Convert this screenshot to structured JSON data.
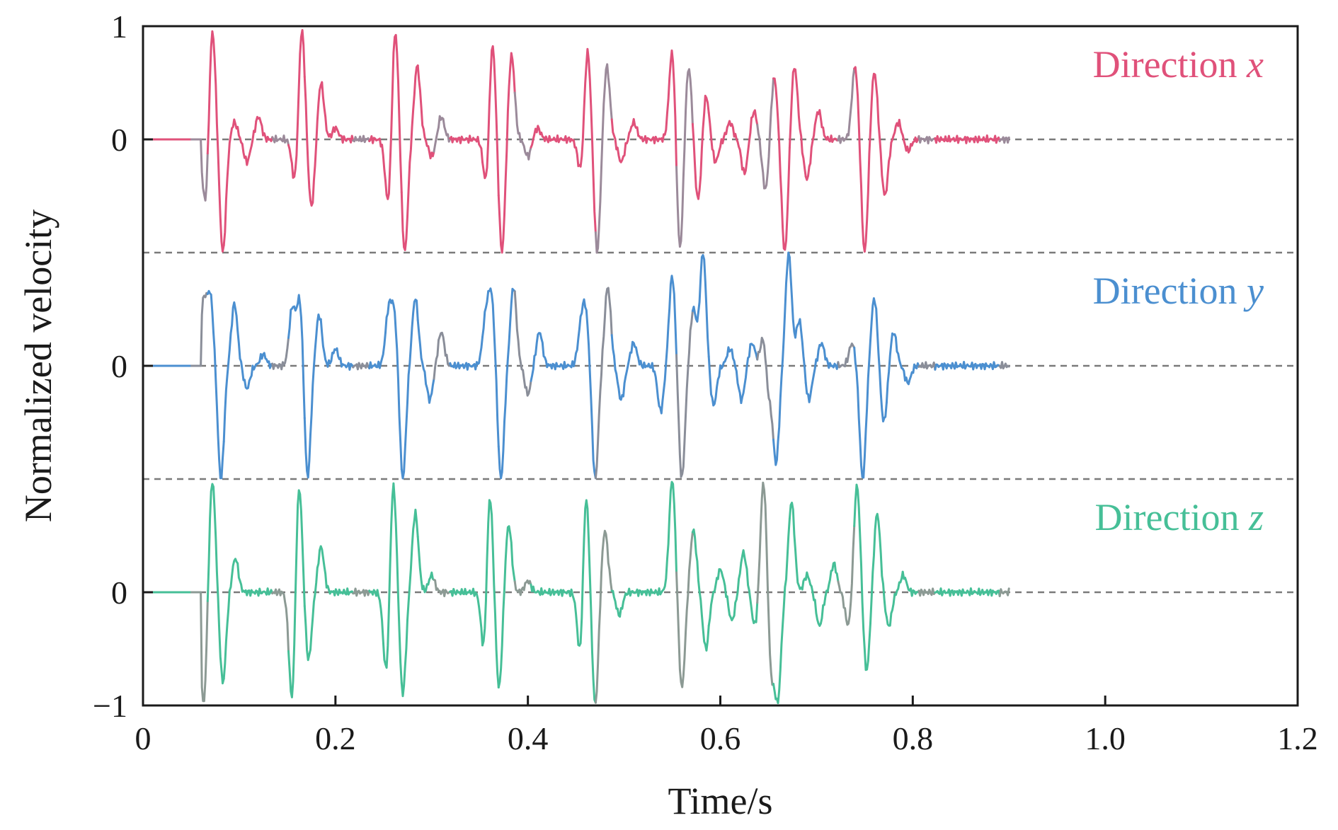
{
  "chart_data": {
    "type": "line",
    "xlabel": "Time/s",
    "ylabel": "Normalized velocity",
    "xlim": [
      0,
      1.2
    ],
    "ylim": [
      -1,
      1
    ],
    "x_ticks": [
      "0",
      "0.2",
      "0.4",
      "0.6",
      "0.8",
      "1.0",
      "1.2"
    ],
    "y_tick_labels": [
      "1",
      "0",
      "0",
      "0",
      "−1"
    ],
    "grid": false,
    "series": [
      {
        "name": "Direction x",
        "label_word": "Direction",
        "label_letter": "x",
        "color": "#e0517a",
        "alt_color": "#9b8a9a",
        "baseline_label": "0",
        "t_start": 0.06,
        "t_end": 0.9,
        "bursts": [
          {
            "t": 0.065,
            "amp": -0.6
          },
          {
            "t": 0.072,
            "amp": 1.0
          },
          {
            "t": 0.083,
            "amp": -1.0
          },
          {
            "t": 0.095,
            "amp": 0.15
          },
          {
            "t": 0.108,
            "amp": -0.2
          },
          {
            "t": 0.12,
            "amp": 0.2
          },
          {
            "t": 0.158,
            "amp": -0.4
          },
          {
            "t": 0.165,
            "amp": 1.0
          },
          {
            "t": 0.175,
            "amp": -0.6
          },
          {
            "t": 0.185,
            "amp": 0.5
          },
          {
            "t": 0.2,
            "amp": 0.1
          },
          {
            "t": 0.255,
            "amp": -0.6
          },
          {
            "t": 0.262,
            "amp": 1.0
          },
          {
            "t": 0.272,
            "amp": -1.0
          },
          {
            "t": 0.285,
            "amp": 0.65
          },
          {
            "t": 0.3,
            "amp": -0.15
          },
          {
            "t": 0.31,
            "amp": 0.2
          },
          {
            "t": 0.357,
            "amp": -0.45
          },
          {
            "t": 0.363,
            "amp": 0.9
          },
          {
            "t": 0.373,
            "amp": -1.0
          },
          {
            "t": 0.383,
            "amp": 0.75
          },
          {
            "t": 0.4,
            "amp": -0.15
          },
          {
            "t": 0.41,
            "amp": 0.1
          },
          {
            "t": 0.455,
            "amp": -0.3
          },
          {
            "t": 0.462,
            "amp": 0.8
          },
          {
            "t": 0.472,
            "amp": -1.0
          },
          {
            "t": 0.482,
            "amp": 0.65
          },
          {
            "t": 0.497,
            "amp": -0.2
          },
          {
            "t": 0.51,
            "amp": 0.15
          },
          {
            "t": 0.55,
            "amp": 0.8
          },
          {
            "t": 0.558,
            "amp": -1.0
          },
          {
            "t": 0.567,
            "amp": 0.65
          },
          {
            "t": 0.577,
            "amp": -0.55
          },
          {
            "t": 0.585,
            "amp": 0.4
          },
          {
            "t": 0.595,
            "amp": -0.2
          },
          {
            "t": 0.61,
            "amp": 0.15
          },
          {
            "t": 0.625,
            "amp": -0.3
          },
          {
            "t": 0.635,
            "amp": 0.25
          },
          {
            "t": 0.647,
            "amp": -0.45
          },
          {
            "t": 0.656,
            "amp": 0.55
          },
          {
            "t": 0.667,
            "amp": -1.0
          },
          {
            "t": 0.677,
            "amp": 0.65
          },
          {
            "t": 0.69,
            "amp": -0.35
          },
          {
            "t": 0.702,
            "amp": 0.25
          },
          {
            "t": 0.74,
            "amp": 0.65
          },
          {
            "t": 0.75,
            "amp": -1.0
          },
          {
            "t": 0.76,
            "amp": 0.6
          },
          {
            "t": 0.771,
            "amp": -0.5
          },
          {
            "t": 0.785,
            "amp": 0.15
          },
          {
            "t": 0.795,
            "amp": -0.1
          }
        ]
      },
      {
        "name": "Direction y",
        "label_word": "Direction",
        "label_letter": "y",
        "color": "#4b8fd0",
        "alt_color": "#8a8e99",
        "baseline_label": "0",
        "t_start": 0.06,
        "t_end": 0.9,
        "bursts": [
          {
            "t": 0.063,
            "amp": 0.55
          },
          {
            "t": 0.07,
            "amp": 0.6
          },
          {
            "t": 0.081,
            "amp": -1.0
          },
          {
            "t": 0.095,
            "amp": 0.55
          },
          {
            "t": 0.108,
            "amp": -0.2
          },
          {
            "t": 0.125,
            "amp": 0.1
          },
          {
            "t": 0.155,
            "amp": 0.5
          },
          {
            "t": 0.163,
            "amp": 0.6
          },
          {
            "t": 0.171,
            "amp": -1.0
          },
          {
            "t": 0.183,
            "amp": 0.45
          },
          {
            "t": 0.2,
            "amp": 0.15
          },
          {
            "t": 0.255,
            "amp": 0.45
          },
          {
            "t": 0.261,
            "amp": 0.45
          },
          {
            "t": 0.27,
            "amp": -1.0
          },
          {
            "t": 0.283,
            "amp": 0.6
          },
          {
            "t": 0.298,
            "amp": -0.3
          },
          {
            "t": 0.31,
            "amp": 0.3
          },
          {
            "t": 0.356,
            "amp": 0.4
          },
          {
            "t": 0.362,
            "amp": 0.6
          },
          {
            "t": 0.372,
            "amp": -1.0
          },
          {
            "t": 0.385,
            "amp": 0.7
          },
          {
            "t": 0.4,
            "amp": -0.25
          },
          {
            "t": 0.412,
            "amp": 0.3
          },
          {
            "t": 0.455,
            "amp": 0.3
          },
          {
            "t": 0.46,
            "amp": 0.45
          },
          {
            "t": 0.47,
            "amp": -1.0
          },
          {
            "t": 0.483,
            "amp": 0.7
          },
          {
            "t": 0.497,
            "amp": -0.3
          },
          {
            "t": 0.51,
            "amp": 0.2
          },
          {
            "t": 0.538,
            "amp": -0.4
          },
          {
            "t": 0.55,
            "amp": 0.8
          },
          {
            "t": 0.56,
            "amp": -1.0
          },
          {
            "t": 0.572,
            "amp": 0.5
          },
          {
            "t": 0.582,
            "amp": 1.0
          },
          {
            "t": 0.593,
            "amp": -0.35
          },
          {
            "t": 0.61,
            "amp": 0.15
          },
          {
            "t": 0.622,
            "amp": -0.3
          },
          {
            "t": 0.633,
            "amp": 0.2
          },
          {
            "t": 0.645,
            "amp": 0.3
          },
          {
            "t": 0.65,
            "amp": -0.3
          },
          {
            "t": 0.658,
            "amp": -0.85
          },
          {
            "t": 0.671,
            "amp": 1.0
          },
          {
            "t": 0.682,
            "amp": 0.4
          },
          {
            "t": 0.692,
            "amp": -0.3
          },
          {
            "t": 0.705,
            "amp": 0.2
          },
          {
            "t": 0.737,
            "amp": 0.2
          },
          {
            "t": 0.748,
            "amp": -1.0
          },
          {
            "t": 0.76,
            "amp": 0.6
          },
          {
            "t": 0.77,
            "amp": -0.5
          },
          {
            "t": 0.78,
            "amp": 0.3
          },
          {
            "t": 0.795,
            "amp": -0.15
          }
        ]
      },
      {
        "name": "Direction z",
        "label_word": "Direction",
        "label_letter": "z",
        "color": "#46bf97",
        "alt_color": "#8c9a94",
        "baseline_label": "0",
        "t_start": 0.06,
        "t_end": 0.9,
        "bursts": [
          {
            "t": 0.063,
            "amp": -1.0
          },
          {
            "t": 0.072,
            "amp": 1.0
          },
          {
            "t": 0.083,
            "amp": -0.8
          },
          {
            "t": 0.096,
            "amp": 0.3
          },
          {
            "t": 0.155,
            "amp": -1.0
          },
          {
            "t": 0.162,
            "amp": 1.0
          },
          {
            "t": 0.172,
            "amp": -0.6
          },
          {
            "t": 0.185,
            "amp": 0.4
          },
          {
            "t": 0.253,
            "amp": -0.75
          },
          {
            "t": 0.26,
            "amp": 1.0
          },
          {
            "t": 0.27,
            "amp": -0.9
          },
          {
            "t": 0.283,
            "amp": 0.7
          },
          {
            "t": 0.3,
            "amp": 0.15
          },
          {
            "t": 0.355,
            "amp": -0.65
          },
          {
            "t": 0.36,
            "amp": 1.0
          },
          {
            "t": 0.37,
            "amp": -0.85
          },
          {
            "t": 0.38,
            "amp": 0.6
          },
          {
            "t": 0.4,
            "amp": 0.1
          },
          {
            "t": 0.455,
            "amp": -0.7
          },
          {
            "t": 0.46,
            "amp": 1.0
          },
          {
            "t": 0.47,
            "amp": -1.0
          },
          {
            "t": 0.48,
            "amp": 0.55
          },
          {
            "t": 0.495,
            "amp": -0.2
          },
          {
            "t": 0.55,
            "amp": 1.0
          },
          {
            "t": 0.56,
            "amp": -0.85
          },
          {
            "t": 0.572,
            "amp": 0.55
          },
          {
            "t": 0.585,
            "amp": -0.5
          },
          {
            "t": 0.6,
            "amp": 0.2
          },
          {
            "t": 0.612,
            "amp": -0.25
          },
          {
            "t": 0.624,
            "amp": 0.35
          },
          {
            "t": 0.636,
            "amp": -0.3
          },
          {
            "t": 0.645,
            "amp": 1.0
          },
          {
            "t": 0.653,
            "amp": -0.7
          },
          {
            "t": 0.66,
            "amp": -0.9
          },
          {
            "t": 0.674,
            "amp": 0.8
          },
          {
            "t": 0.69,
            "amp": 0.15
          },
          {
            "t": 0.703,
            "amp": -0.3
          },
          {
            "t": 0.718,
            "amp": 0.25
          },
          {
            "t": 0.733,
            "amp": -0.3
          },
          {
            "t": 0.742,
            "amp": 0.95
          },
          {
            "t": 0.752,
            "amp": -0.7
          },
          {
            "t": 0.763,
            "amp": 0.7
          },
          {
            "t": 0.775,
            "amp": -0.3
          },
          {
            "t": 0.79,
            "amp": 0.15
          }
        ]
      }
    ]
  }
}
